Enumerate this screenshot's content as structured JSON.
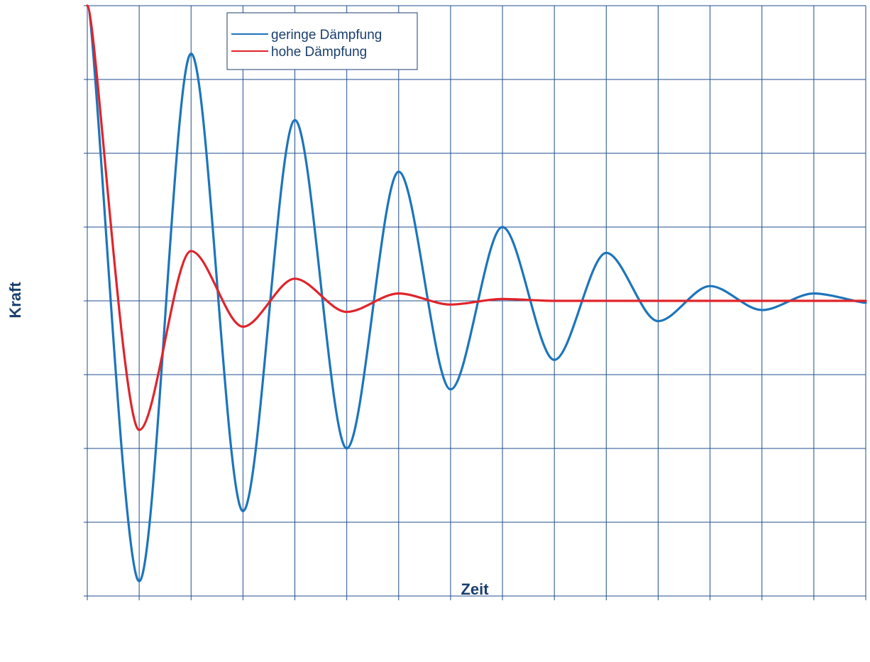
{
  "chart_data": {
    "type": "line",
    "title": "",
    "xlabel": "Zeit",
    "ylabel": "Kraft",
    "xlim": [
      0,
      15
    ],
    "ylim": [
      -8,
      8
    ],
    "grid": true,
    "legend_position": "top-center",
    "colors": {
      "grid": "#1f4e8c",
      "frame": "#1f4e8c",
      "text": "#1a3f6e"
    },
    "series": [
      {
        "name": "geringe Dämpfung",
        "color": "#1c75bc",
        "x": [
          0,
          1,
          2,
          3,
          4,
          5,
          6,
          7,
          8,
          9,
          10,
          11,
          12,
          13,
          14,
          15
        ],
        "y": [
          8,
          -7.6,
          6.7,
          -5.7,
          4.9,
          -4.0,
          3.5,
          -2.4,
          2.0,
          -1.6,
          1.3,
          -0.55,
          0.4,
          -0.25,
          0.2,
          -0.05
        ]
      },
      {
        "name": "hohe Dämpfung",
        "color": "#e0242b",
        "x": [
          0,
          1,
          2,
          3,
          4,
          5,
          6,
          7,
          8,
          9,
          10,
          11,
          12,
          13,
          14,
          15
        ],
        "y": [
          8,
          -3.5,
          1.35,
          -0.7,
          0.6,
          -0.3,
          0.2,
          -0.1,
          0.05,
          0,
          0,
          0,
          0,
          0,
          0,
          0
        ]
      }
    ]
  }
}
